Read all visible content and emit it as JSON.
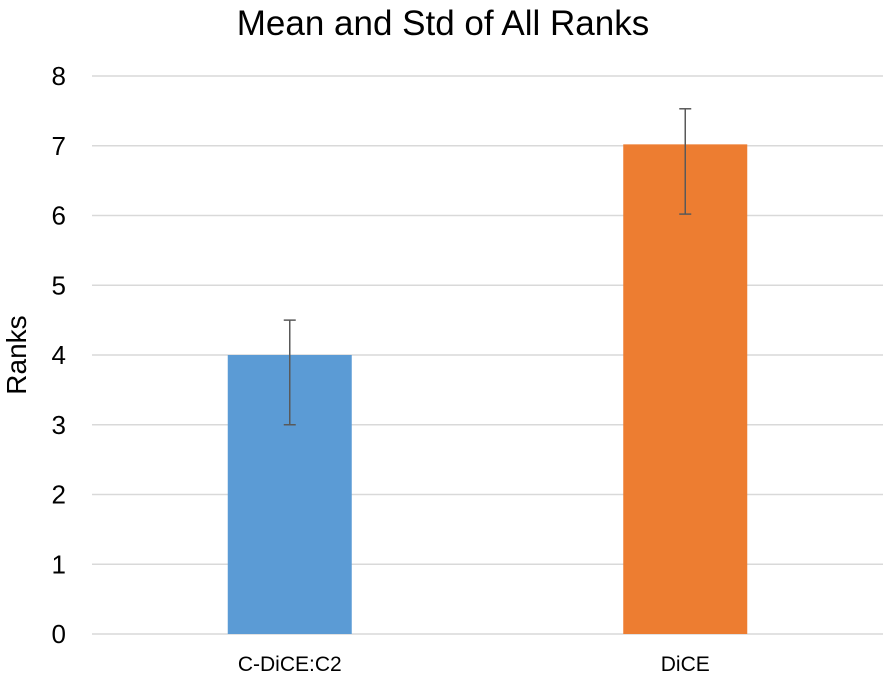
{
  "chart_data": {
    "type": "bar",
    "title": "Mean and Std of All Ranks",
    "xlabel": "",
    "ylabel": "Ranks",
    "ylim": [
      0,
      8
    ],
    "yticks": [
      "0",
      "1",
      "2",
      "3",
      "4",
      "5",
      "6",
      "7",
      "8"
    ],
    "grid": true,
    "legend": "none",
    "categories": [
      "C-DiCE:C2",
      "DiCE"
    ],
    "values": [
      4.0,
      7.02
    ],
    "errors_low": [
      3.0,
      6.02
    ],
    "errors_high": [
      4.5,
      7.53
    ],
    "colors": [
      "#5B9BD5",
      "#ED7D31"
    ],
    "grid_color": "#D9D9D9",
    "error_color": "#595959"
  }
}
